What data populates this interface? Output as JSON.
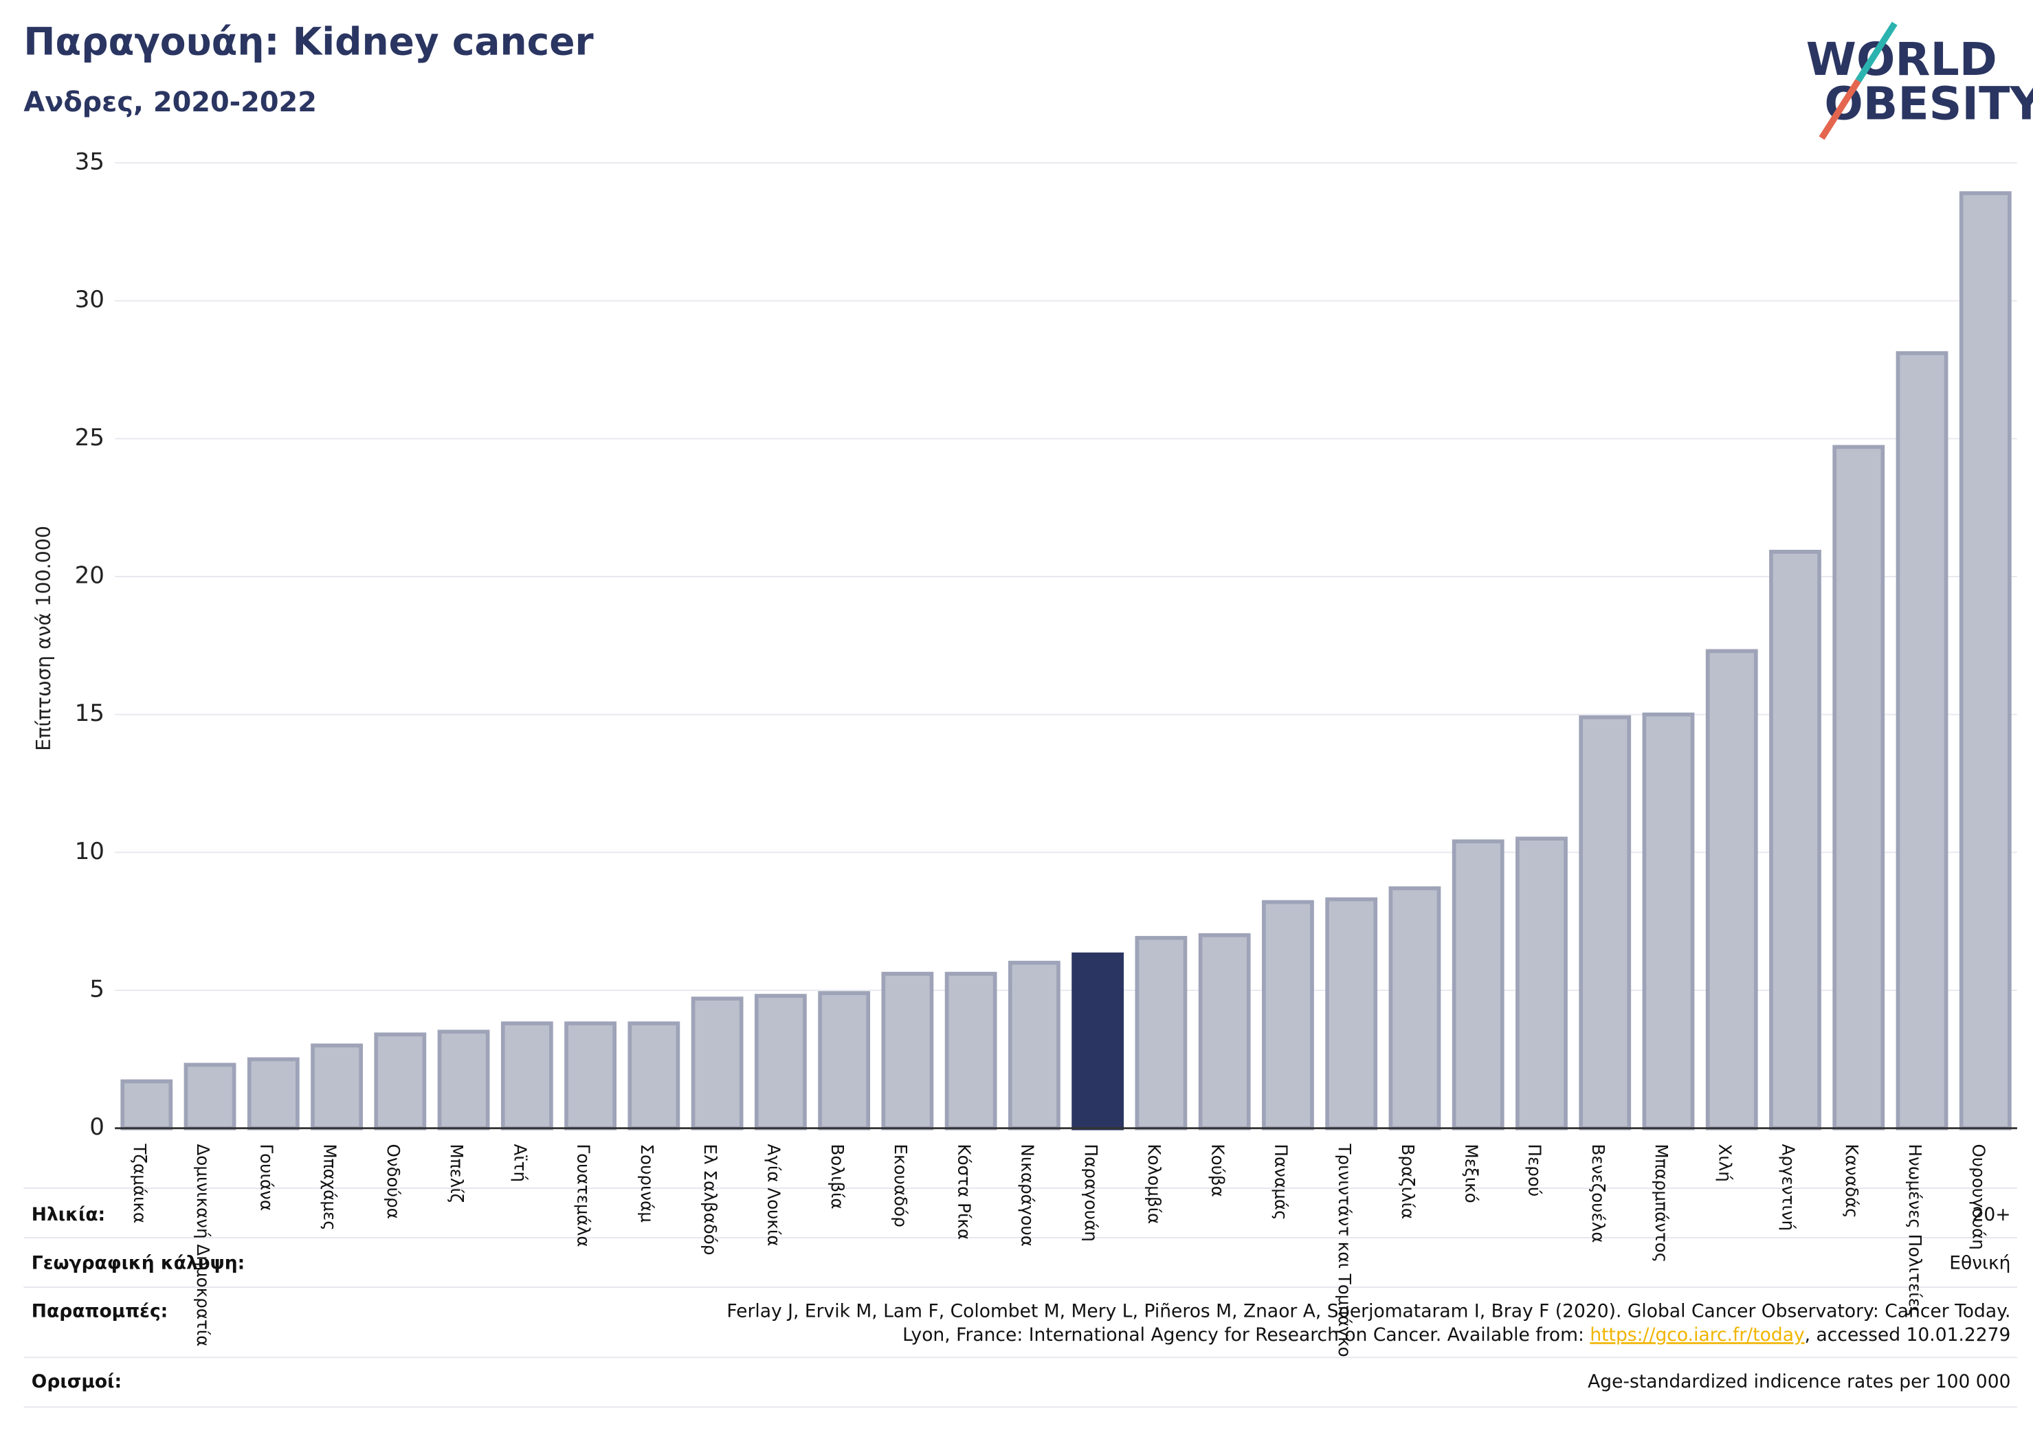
{
  "chart_data": {
    "type": "bar",
    "title": "Παραγουάη: Kidney cancer",
    "subtitle": "Ανδρες, 2020-2022",
    "y_label": "Επίπτωση ανά 100.000",
    "logo": [
      "WORLD",
      "OBESITY"
    ],
    "categories": [
      "Τζαμάικα",
      "Δομινικανή Δημοκρατία",
      "Γουιάνα",
      "Μπαχάμες",
      "Ονδούρα",
      "Μπελίζ",
      "Αϊτή",
      "Γουατεμάλα",
      "Σουρινάμ",
      "Ελ Σαλβαδόρ",
      "Αγία Λουκία",
      "Βολιβία",
      "Εκουαδόρ",
      "Κόστα Ρίκα",
      "Νικαράγουα",
      "Παραγουάη",
      "Κολομβία",
      "Κούβα",
      "Παναμάς",
      "Τρινιντάντ και Τομπάγκο",
      "Βραζιλία",
      "Μεξικό",
      "Περού",
      "Βενεζουέλα",
      "Μπαρμπάντος",
      "Χιλή",
      "Αργεντινή",
      "Καναδάς",
      "Ηνωμένες Πολιτείες",
      "Ουρουγουάη"
    ],
    "values": [
      1.7,
      2.3,
      2.5,
      3.0,
      3.4,
      3.5,
      3.8,
      3.8,
      3.8,
      4.7,
      4.8,
      4.9,
      5.6,
      5.6,
      6.0,
      6.3,
      6.9,
      7.0,
      8.2,
      8.3,
      8.7,
      10.4,
      10.5,
      14.9,
      15.0,
      17.3,
      20.9,
      24.7,
      28.1,
      33.9
    ],
    "colors": [
      "#bcc0cd",
      "#bcc0cd",
      "#bcc0cd",
      "#bcc0cd",
      "#bcc0cd",
      "#bcc0cd",
      "#bcc0cd",
      "#bcc0cd",
      "#bcc0cd",
      "#bcc0cd",
      "#bcc0cd",
      "#bcc0cd",
      "#bcc0cd",
      "#bcc0cd",
      "#bcc0cd",
      "#2a3561",
      "#bcc0cd",
      "#bcc0cd",
      "#bcc0cd",
      "#bcc0cd",
      "#bcc0cd",
      "#bcc0cd",
      "#bcc0cd",
      "#bcc0cd",
      "#bcc0cd",
      "#bcc0cd",
      "#bcc0cd",
      "#bcc0cd",
      "#bcc0cd",
      "#bcc0cd"
    ],
    "ylim": [
      0,
      35
    ],
    "yticks": [
      0,
      5,
      10,
      15,
      20,
      25,
      30,
      35
    ],
    "grid": true
  },
  "footer": {
    "age_label": "Ηλικία:",
    "age": "20+",
    "coverage_label": "Γεωγραφική κάλυψη:",
    "coverage": "Εθνική",
    "references_label": "Παραπομπές:",
    "references_line1": "Ferlay J, Ervik M, Lam F, Colombet M, Mery L, Piñeros M, Znaor A, Soerjomataram I, Bray F (2020). Global Cancer Observatory: Cancer Today.",
    "references_line2": "Lyon, France: International Agency for Research on Cancer. Available from: ",
    "references_link": "https://gco.iarc.fr/today",
    "references_tail": ", accessed 10.01.2279",
    "definitions_label": "Ορισμοί:",
    "definitions": "Age-standardized indicence rates per 100 000"
  }
}
